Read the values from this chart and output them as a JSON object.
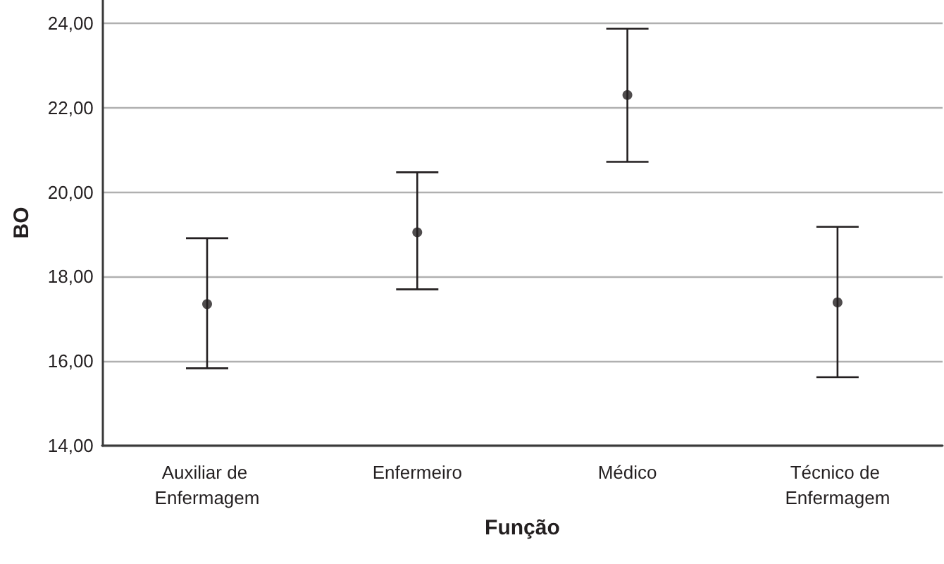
{
  "chart_data": {
    "type": "scatter",
    "xlabel": "Função",
    "ylabel": "BO",
    "categories": [
      "Auxiliar de Enfermagem",
      "Enfermeiro",
      "Médico",
      "Técnico de Enfermagem"
    ],
    "values": [
      17.35,
      19.05,
      22.3,
      17.39
    ],
    "errors": [
      [
        15.83,
        18.91
      ],
      [
        17.7,
        20.47
      ],
      [
        20.72,
        23.87
      ],
      [
        15.62,
        19.18
      ]
    ],
    "color": "#231f20",
    "marker": "circle",
    "ylim": [
      14,
      24.55
    ],
    "yticks": [
      {
        "value": 14,
        "label": "14,00"
      },
      {
        "value": 16,
        "label": "16,00"
      },
      {
        "value": 18,
        "label": "18,00"
      },
      {
        "value": 20,
        "label": "20,00"
      },
      {
        "value": 22,
        "label": "22,00"
      },
      {
        "value": 24,
        "label": "24,00"
      }
    ],
    "grid": "y"
  }
}
